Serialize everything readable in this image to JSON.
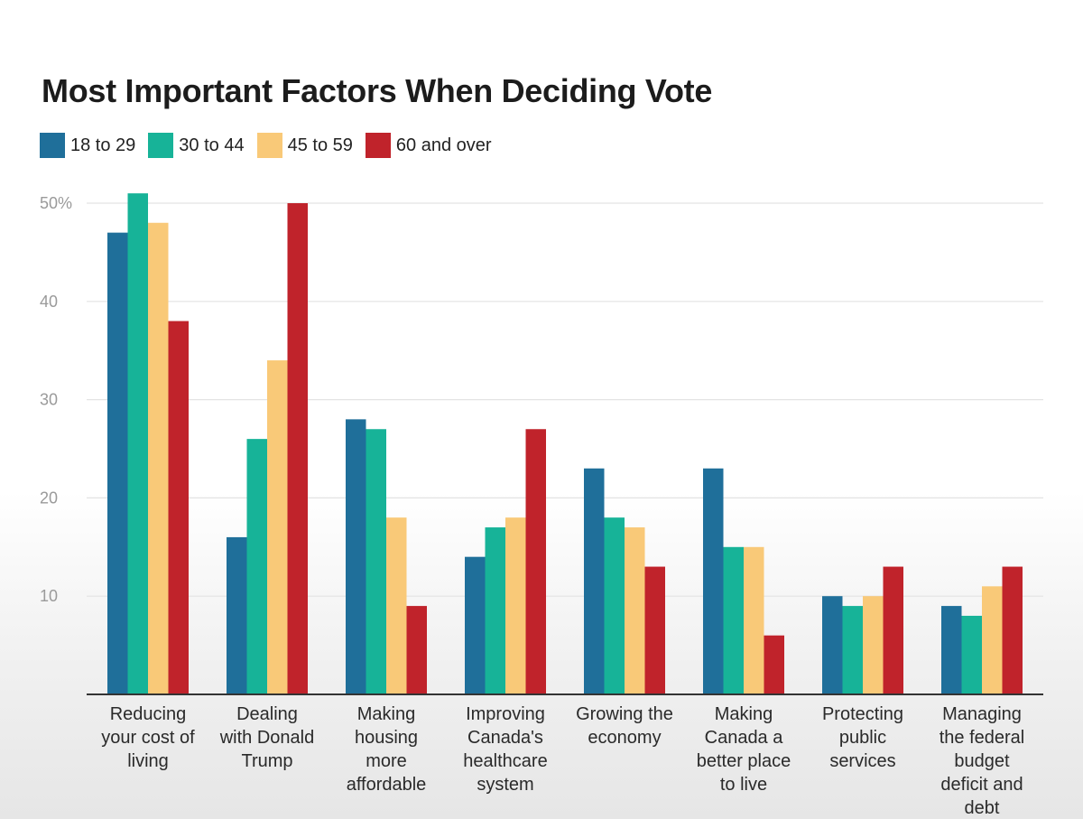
{
  "chart_data": {
    "type": "bar",
    "title": "Most Important Factors When Deciding Vote",
    "xlabel": "",
    "ylabel": "",
    "ylim": [
      0,
      50
    ],
    "yticks": [
      "10",
      "20",
      "30",
      "40",
      "50%"
    ],
    "ytick_values": [
      10,
      20,
      30,
      40,
      50
    ],
    "grid": true,
    "legend_position": "top-left",
    "categories": [
      "Reducing your cost of living",
      "Dealing with Donald Trump",
      "Making housing more affordable",
      "Improving Canada's healthcare system",
      "Growing the economy",
      "Making Canada a better place to live",
      "Protecting public services",
      "Managing the federal budget deficit and debt"
    ],
    "category_lines": [
      [
        "Reducing",
        "your cost of",
        "living"
      ],
      [
        "Dealing",
        "with Donald",
        "Trump"
      ],
      [
        "Making",
        "housing",
        "more",
        "affordable"
      ],
      [
        "Improving",
        "Canada's",
        "healthcare",
        "system"
      ],
      [
        "Growing the",
        "economy"
      ],
      [
        "Making",
        "Canada a",
        "better place",
        "to live"
      ],
      [
        "Protecting",
        "public",
        "services"
      ],
      [
        "Managing",
        "the federal",
        "budget",
        "deficit and",
        "debt"
      ]
    ],
    "series": [
      {
        "name": "18 to 29",
        "color": "#1f6f9a",
        "values": [
          47,
          16,
          28,
          14,
          23,
          23,
          10,
          9
        ]
      },
      {
        "name": "30 to 44",
        "color": "#17b398",
        "values": [
          51,
          26,
          27,
          17,
          18,
          15,
          9,
          8
        ]
      },
      {
        "name": "45 to 59",
        "color": "#f9c978",
        "values": [
          48,
          34,
          18,
          18,
          17,
          15,
          10,
          11
        ]
      },
      {
        "name": "60 and over",
        "color": "#c0232b",
        "values": [
          38,
          50,
          9,
          27,
          13,
          6,
          13,
          13
        ]
      }
    ]
  }
}
